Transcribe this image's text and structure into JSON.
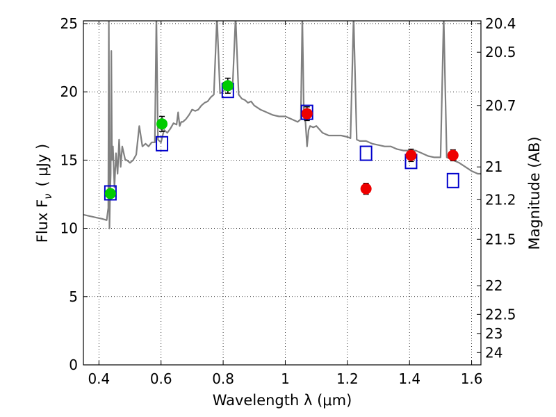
{
  "chart_data": {
    "type": "scatter",
    "xlabel": "Wavelength  λ (μm)",
    "ylabel_left": "Flux  F",
    "ylabel_left_sub": "ν",
    "ylabel_left_unit": "( μJy )",
    "ylabel_right": "Magnitude (AB)",
    "xlim": [
      0.35,
      1.63
    ],
    "ylim": [
      0,
      25.2
    ],
    "grid": true,
    "x_ticks": [
      0.4,
      0.6,
      0.8,
      1.0,
      1.2,
      1.4,
      1.6
    ],
    "x_tick_labels": [
      "0.4",
      "0.6",
      "0.8",
      "1",
      "1.2",
      "1.4",
      "1.6"
    ],
    "y_ticks": [
      0,
      5,
      10,
      15,
      20,
      25
    ],
    "y_tick_labels": [
      "0",
      "5",
      "10",
      "15",
      "20",
      "25"
    ],
    "right_ticks": [
      {
        "label": "20.4",
        "flux": 25.0
      },
      {
        "label": "20.5",
        "flux": 22.9
      },
      {
        "label": "20.7",
        "flux": 19.0
      },
      {
        "label": "21",
        "flux": 14.5
      },
      {
        "label": "21.2",
        "flux": 12.1
      },
      {
        "label": "21.5",
        "flux": 9.2
      },
      {
        "label": "22",
        "flux": 5.8
      },
      {
        "label": "22.5",
        "flux": 3.7
      },
      {
        "label": "23",
        "flux": 2.3
      },
      {
        "label": "24",
        "flux": 0.9
      }
    ],
    "series": [
      {
        "kind": "model_spectrum",
        "color": "#808080",
        "x": [
          0.35,
          0.37,
          0.39,
          0.41,
          0.425,
          0.43,
          0.432,
          0.434,
          0.436,
          0.438,
          0.44,
          0.442,
          0.445,
          0.45,
          0.455,
          0.46,
          0.465,
          0.47,
          0.475,
          0.48,
          0.485,
          0.49,
          0.5,
          0.51,
          0.52,
          0.53,
          0.54,
          0.55,
          0.56,
          0.57,
          0.58,
          0.585,
          0.59,
          0.595,
          0.6,
          0.605,
          0.61,
          0.62,
          0.63,
          0.64,
          0.65,
          0.655,
          0.66,
          0.665,
          0.67,
          0.68,
          0.69,
          0.7,
          0.71,
          0.72,
          0.73,
          0.74,
          0.75,
          0.76,
          0.77,
          0.78,
          0.79,
          0.8,
          0.81,
          0.82,
          0.83,
          0.84,
          0.85,
          0.86,
          0.87,
          0.88,
          0.89,
          0.9,
          0.92,
          0.94,
          0.96,
          0.98,
          1.0,
          1.02,
          1.04,
          1.05,
          1.055,
          1.06,
          1.065,
          1.07,
          1.075,
          1.08,
          1.09,
          1.1,
          1.12,
          1.14,
          1.16,
          1.18,
          1.2,
          1.21,
          1.22,
          1.23,
          1.24,
          1.26,
          1.28,
          1.3,
          1.32,
          1.34,
          1.36,
          1.38,
          1.4,
          1.42,
          1.44,
          1.46,
          1.48,
          1.5,
          1.51,
          1.52,
          1.53,
          1.54,
          1.56,
          1.58,
          1.6,
          1.62,
          1.63
        ],
        "y": [
          11.0,
          10.9,
          10.8,
          10.7,
          10.6,
          11.5,
          25.5,
          10.0,
          12.4,
          14.0,
          23.0,
          15.0,
          16.0,
          13.0,
          15.5,
          14.0,
          16.5,
          14.5,
          16.0,
          15.5,
          15.0,
          15.0,
          14.8,
          15.0,
          15.4,
          17.5,
          16.0,
          16.2,
          16.0,
          16.3,
          16.3,
          25.5,
          16.5,
          16.4,
          16.3,
          16.8,
          17.2,
          17.0,
          17.3,
          17.7,
          17.6,
          18.5,
          17.5,
          17.8,
          17.8,
          18.0,
          18.3,
          18.7,
          18.6,
          18.7,
          19.0,
          19.2,
          19.3,
          19.6,
          19.8,
          25.5,
          19.9,
          20.0,
          20.5,
          20.2,
          20.2,
          25.5,
          19.8,
          19.5,
          19.4,
          19.2,
          19.3,
          19.0,
          18.7,
          18.5,
          18.3,
          18.2,
          18.2,
          18.0,
          17.8,
          18.0,
          25.5,
          18.1,
          17.8,
          16.0,
          17.2,
          17.5,
          17.4,
          17.5,
          17.0,
          16.8,
          16.8,
          16.8,
          16.7,
          16.6,
          25.5,
          16.5,
          16.4,
          16.4,
          16.2,
          16.1,
          16.0,
          16.0,
          15.8,
          15.7,
          15.7,
          15.7,
          15.5,
          15.3,
          15.2,
          15.2,
          25.5,
          15.2,
          15.1,
          15.0,
          14.8,
          14.5,
          14.2,
          14.0,
          14.0
        ]
      },
      {
        "kind": "model_bandpass_flux",
        "marker": "open-square",
        "color": "#0000cc",
        "points": [
          {
            "x": 0.437,
            "y": 12.6
          },
          {
            "x": 0.603,
            "y": 16.2
          },
          {
            "x": 0.815,
            "y": 20.1
          },
          {
            "x": 1.07,
            "y": 18.5
          },
          {
            "x": 1.26,
            "y": 15.5
          },
          {
            "x": 1.405,
            "y": 14.9
          },
          {
            "x": 1.54,
            "y": 13.5
          }
        ]
      },
      {
        "kind": "observed_optical",
        "marker": "filled-circle",
        "color": "#00cc00",
        "points": [
          {
            "x": 0.437,
            "y": 12.55,
            "err": 0.3
          },
          {
            "x": 0.603,
            "y": 17.65,
            "err": 0.55
          },
          {
            "x": 0.815,
            "y": 20.45,
            "err": 0.55
          }
        ]
      },
      {
        "kind": "observed_nir",
        "marker": "filled-circle",
        "color": "#ee0000",
        "points": [
          {
            "x": 1.07,
            "y": 18.4,
            "err": 0.5
          },
          {
            "x": 1.26,
            "y": 12.9,
            "err": 0.4
          },
          {
            "x": 1.405,
            "y": 15.35,
            "err": 0.45
          },
          {
            "x": 1.54,
            "y": 15.35,
            "err": 0.4
          }
        ]
      }
    ]
  }
}
